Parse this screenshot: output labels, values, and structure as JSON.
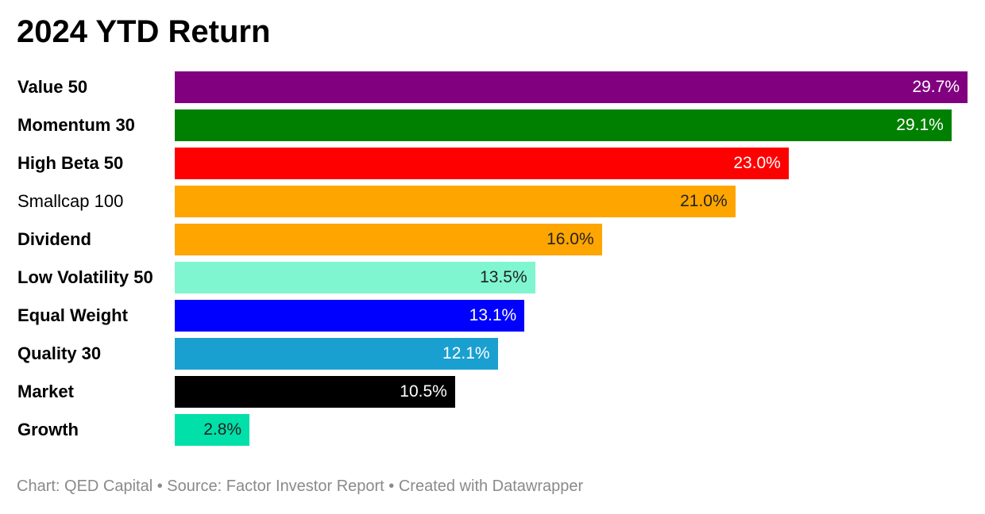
{
  "chart_data": {
    "type": "bar",
    "orientation": "horizontal",
    "title": "2024 YTD Return",
    "categories": [
      "Value 50",
      "Momentum 30",
      "High Beta 50",
      "Smallcap 100",
      "Dividend",
      "Low Volatility 50",
      "Equal Weight",
      "Quality 30",
      "Market",
      "Growth"
    ],
    "values": [
      29.7,
      29.1,
      23.0,
      21.0,
      16.0,
      13.5,
      13.1,
      12.1,
      10.5,
      2.8
    ],
    "value_labels": [
      "29.7%",
      "29.1%",
      "23.0%",
      "21.0%",
      "16.0%",
      "13.5%",
      "13.1%",
      "12.1%",
      "10.5%",
      "2.8%"
    ],
    "label_bold": [
      true,
      true,
      true,
      false,
      true,
      true,
      true,
      true,
      true,
      true
    ],
    "colors": [
      "#800080",
      "#008000",
      "#ff0000",
      "#ffa500",
      "#ffa500",
      "#7ff6d0",
      "#0000ff",
      "#1aa0d0",
      "#000000",
      "#00e0a8"
    ],
    "value_text_colors": [
      "#ffffff",
      "#ffffff",
      "#ffffff",
      "#222222",
      "#222222",
      "#222222",
      "#ffffff",
      "#ffffff",
      "#ffffff",
      "#222222"
    ],
    "xlim": [
      0,
      29.7
    ],
    "grid": false,
    "legend": "none"
  },
  "footer": "Chart: QED Capital • Source: Factor Investor Report • Created with Datawrapper"
}
